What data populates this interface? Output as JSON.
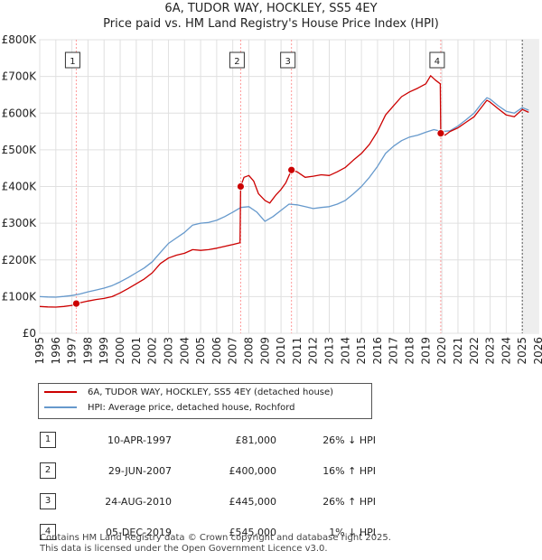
{
  "chart_data": {
    "type": "line",
    "title": "6A, TUDOR WAY, HOCKLEY, SS5 4EY",
    "subtitle": "Price paid vs. HM Land Registry's House Price Index (HPI)",
    "xlabel": "",
    "ylabel": "",
    "xlim": [
      1995,
      2026
    ],
    "ylim": [
      0,
      800000
    ],
    "x_ticks": [
      "1995",
      "1996",
      "1997",
      "1998",
      "1999",
      "2000",
      "2001",
      "2002",
      "2003",
      "2004",
      "2005",
      "2006",
      "2007",
      "2008",
      "2009",
      "2010",
      "2011",
      "2012",
      "2013",
      "2014",
      "2015",
      "2016",
      "2017",
      "2018",
      "2019",
      "2020",
      "2021",
      "2022",
      "2023",
      "2024",
      "2025",
      "2026"
    ],
    "y_ticks": [
      {
        "value": 0,
        "label": "£0"
      },
      {
        "value": 100000,
        "label": "£100K"
      },
      {
        "value": 200000,
        "label": "£200K"
      },
      {
        "value": 300000,
        "label": "£300K"
      },
      {
        "value": 400000,
        "label": "£400K"
      },
      {
        "value": 500000,
        "label": "£500K"
      },
      {
        "value": 600000,
        "label": "£600K"
      },
      {
        "value": 700000,
        "label": "£700K"
      },
      {
        "value": 800000,
        "label": "£800K"
      }
    ],
    "grid": true,
    "series": [
      {
        "name": "6A, TUDOR WAY, HOCKLEY, SS5 4EY (detached house)",
        "color": "#cc0000",
        "points": [
          [
            1995.0,
            73000
          ],
          [
            1995.5,
            72000
          ],
          [
            1996.0,
            71500
          ],
          [
            1996.5,
            73000
          ],
          [
            1997.0,
            76000
          ],
          [
            1997.27,
            81000
          ],
          [
            1997.5,
            83000
          ],
          [
            1998.0,
            88000
          ],
          [
            1998.5,
            92000
          ],
          [
            1999.0,
            95000
          ],
          [
            1999.5,
            100000
          ],
          [
            2000.0,
            110000
          ],
          [
            2000.5,
            122000
          ],
          [
            2001.0,
            135000
          ],
          [
            2001.5,
            148000
          ],
          [
            2002.0,
            165000
          ],
          [
            2002.5,
            190000
          ],
          [
            2003.0,
            205000
          ],
          [
            2003.5,
            213000
          ],
          [
            2004.0,
            218000
          ],
          [
            2004.5,
            228000
          ],
          [
            2005.0,
            226000
          ],
          [
            2005.5,
            228000
          ],
          [
            2006.0,
            232000
          ],
          [
            2006.5,
            237000
          ],
          [
            2007.0,
            242000
          ],
          [
            2007.45,
            247000
          ],
          [
            2007.49,
            400000
          ],
          [
            2007.7,
            425000
          ],
          [
            2008.0,
            430000
          ],
          [
            2008.3,
            415000
          ],
          [
            2008.6,
            380000
          ],
          [
            2009.0,
            362000
          ],
          [
            2009.3,
            355000
          ],
          [
            2009.7,
            378000
          ],
          [
            2010.0,
            392000
          ],
          [
            2010.3,
            410000
          ],
          [
            2010.65,
            445000
          ],
          [
            2011.0,
            440000
          ],
          [
            2011.5,
            425000
          ],
          [
            2012.0,
            428000
          ],
          [
            2012.5,
            432000
          ],
          [
            2013.0,
            430000
          ],
          [
            2013.5,
            440000
          ],
          [
            2014.0,
            452000
          ],
          [
            2014.5,
            472000
          ],
          [
            2015.0,
            490000
          ],
          [
            2015.5,
            515000
          ],
          [
            2016.0,
            550000
          ],
          [
            2016.5,
            595000
          ],
          [
            2017.0,
            620000
          ],
          [
            2017.5,
            645000
          ],
          [
            2018.0,
            658000
          ],
          [
            2018.5,
            668000
          ],
          [
            2019.0,
            680000
          ],
          [
            2019.3,
            702000
          ],
          [
            2019.6,
            690000
          ],
          [
            2019.9,
            680000
          ],
          [
            2019.93,
            545000
          ],
          [
            2020.2,
            540000
          ],
          [
            2020.5,
            550000
          ],
          [
            2021.0,
            560000
          ],
          [
            2021.5,
            575000
          ],
          [
            2022.0,
            590000
          ],
          [
            2022.5,
            618000
          ],
          [
            2022.8,
            635000
          ],
          [
            2023.0,
            630000
          ],
          [
            2023.5,
            612000
          ],
          [
            2024.0,
            595000
          ],
          [
            2024.5,
            590000
          ],
          [
            2025.0,
            610000
          ],
          [
            2025.4,
            602000
          ]
        ]
      },
      {
        "name": "HPI: Average price, detached house, Rochford",
        "color": "#6699cc",
        "points": [
          [
            1995.0,
            100000
          ],
          [
            1995.5,
            99000
          ],
          [
            1996.0,
            98500
          ],
          [
            1996.5,
            100500
          ],
          [
            1997.0,
            103000
          ],
          [
            1997.5,
            107000
          ],
          [
            1998.0,
            113000
          ],
          [
            1998.5,
            118000
          ],
          [
            1999.0,
            123000
          ],
          [
            1999.5,
            130000
          ],
          [
            2000.0,
            140000
          ],
          [
            2000.5,
            152000
          ],
          [
            2001.0,
            165000
          ],
          [
            2001.5,
            178000
          ],
          [
            2002.0,
            195000
          ],
          [
            2002.5,
            220000
          ],
          [
            2003.0,
            245000
          ],
          [
            2003.5,
            260000
          ],
          [
            2004.0,
            275000
          ],
          [
            2004.5,
            295000
          ],
          [
            2005.0,
            300000
          ],
          [
            2005.5,
            302000
          ],
          [
            2006.0,
            308000
          ],
          [
            2006.5,
            318000
          ],
          [
            2007.0,
            330000
          ],
          [
            2007.5,
            343000
          ],
          [
            2008.0,
            345000
          ],
          [
            2008.5,
            330000
          ],
          [
            2009.0,
            305000
          ],
          [
            2009.5,
            318000
          ],
          [
            2010.0,
            335000
          ],
          [
            2010.5,
            352000
          ],
          [
            2011.0,
            350000
          ],
          [
            2011.5,
            345000
          ],
          [
            2012.0,
            340000
          ],
          [
            2012.5,
            343000
          ],
          [
            2013.0,
            345000
          ],
          [
            2013.5,
            352000
          ],
          [
            2014.0,
            362000
          ],
          [
            2014.5,
            380000
          ],
          [
            2015.0,
            400000
          ],
          [
            2015.5,
            425000
          ],
          [
            2016.0,
            455000
          ],
          [
            2016.5,
            490000
          ],
          [
            2017.0,
            510000
          ],
          [
            2017.5,
            525000
          ],
          [
            2018.0,
            535000
          ],
          [
            2018.5,
            540000
          ],
          [
            2019.0,
            548000
          ],
          [
            2019.5,
            555000
          ],
          [
            2020.0,
            550000
          ],
          [
            2020.5,
            552000
          ],
          [
            2021.0,
            565000
          ],
          [
            2021.5,
            582000
          ],
          [
            2022.0,
            600000
          ],
          [
            2022.5,
            628000
          ],
          [
            2022.8,
            642000
          ],
          [
            2023.0,
            638000
          ],
          [
            2023.5,
            620000
          ],
          [
            2024.0,
            605000
          ],
          [
            2024.5,
            600000
          ],
          [
            2025.0,
            615000
          ],
          [
            2025.4,
            608000
          ]
        ]
      }
    ],
    "markers": [
      {
        "label": "1",
        "x": 1997.27,
        "y": 81000
      },
      {
        "label": "2",
        "x": 2007.49,
        "y": 400000
      },
      {
        "label": "3",
        "x": 2010.65,
        "y": 445000
      },
      {
        "label": "4",
        "x": 2019.93,
        "y": 545000
      }
    ],
    "shaded_region": {
      "from": 2025.0,
      "to": 2026.0
    }
  },
  "legend": {
    "property_label": "6A, TUDOR WAY, HOCKLEY, SS5 4EY (detached house)",
    "hpi_label": "HPI: Average price, detached house, Rochford"
  },
  "sales": [
    {
      "num": "1",
      "date": "10-APR-1997",
      "price": "£81,000",
      "pct": "26% ↓ HPI"
    },
    {
      "num": "2",
      "date": "29-JUN-2007",
      "price": "£400,000",
      "pct": "16% ↑ HPI"
    },
    {
      "num": "3",
      "date": "24-AUG-2010",
      "price": "£445,000",
      "pct": "26% ↑ HPI"
    },
    {
      "num": "4",
      "date": "05-DEC-2019",
      "price": "£545,000",
      "pct": "1% ↓ HPI"
    }
  ],
  "footer": {
    "line1": "Contains HM Land Registry data © Crown copyright and database right 2025.",
    "line2": "This data is licensed under the Open Government Licence v3.0."
  },
  "colors": {
    "property": "#cc0000",
    "hpi": "#6699cc",
    "grid": "#e0e0e0",
    "marker_line": "#ff9999"
  }
}
